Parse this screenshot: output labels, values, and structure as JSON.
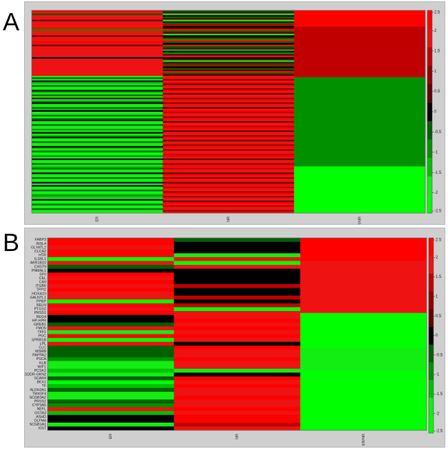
{
  "panel_labels": [
    "A",
    "B"
  ],
  "chart_data": [
    {
      "type": "heatmap",
      "title": "",
      "columns": [
        "ER",
        "NR",
        "ER/NR"
      ],
      "row_labels_visible": false,
      "n_rows": 130,
      "colorbar": {
        "min": -2.5,
        "max": 2.5,
        "ticks": [
          "2.5",
          "2",
          "1.5",
          "1",
          "0.5",
          "0",
          "-0.5",
          "-1",
          "-1.5",
          "-2",
          "-2.5"
        ],
        "colors": [
          "#00ff00",
          "#12ee12",
          "#00c000",
          "#009000",
          "#006000",
          "#000000",
          "#600000",
          "#900000",
          "#c00000",
          "#ee1212",
          "#ff0000"
        ]
      },
      "er_nr_segments": [
        {
          "value": 2.3,
          "fraction": 0.08
        },
        {
          "value": 1.3,
          "fraction": 0.25
        },
        {
          "value": -0.8,
          "fraction": 0.44
        },
        {
          "value": -2.1,
          "fraction": 0.17
        },
        {
          "value": -2.4,
          "fraction": 0.06
        }
      ],
      "er_values": [
        2.1,
        2.0,
        -0.3,
        2.0,
        1.8,
        2.0,
        0.4,
        2.0,
        1.7,
        2.0,
        1.6,
        2.2,
        -0.8,
        1.9,
        2.0,
        1.8,
        0.5,
        2.0,
        2.0,
        1.7,
        2.1,
        1.6,
        0.3,
        1.9,
        2.0,
        1.8,
        2.0,
        1.7,
        1.8,
        2.0,
        0.2,
        1.9,
        2.0,
        1.8,
        2.0,
        1.7,
        1.9,
        2.0,
        1.6,
        1.9,
        2.0,
        1.8,
        -1.8,
        -0.4,
        -1.6,
        0.1,
        -1.2,
        -2.0,
        -0.3,
        -1.7,
        -2.1,
        0.0,
        -1.4,
        -2.2,
        -0.6,
        -1.9,
        0.3,
        -2.0,
        -1.1,
        -0.2,
        -1.8,
        -2.3,
        -0.5,
        -1.5,
        0.0,
        -2.0,
        -1.7,
        -0.4,
        -2.1,
        -1.0,
        0.2,
        -1.9,
        -2.2,
        -0.3,
        -1.6,
        -2.0,
        -0.7,
        -1.8,
        0.1,
        -2.1,
        -1.3,
        -0.2,
        -1.9,
        -2.2,
        -0.5,
        -1.7,
        -2.0,
        0.0,
        -1.5,
        -2.1,
        -0.4,
        -1.8,
        -2.2,
        -0.9,
        -1.6,
        0.2,
        -2.0,
        -1.7,
        -0.3,
        -2.1,
        -1.4,
        -0.6,
        -1.9,
        -2.2,
        0.0,
        -1.8,
        -2.0,
        -0.5,
        -1.6,
        -2.1,
        -0.2,
        -1.9,
        0.1,
        -1.7,
        -2.0,
        -0.4,
        -1.8,
        -2.2,
        -0.8,
        -1.5,
        -2.0,
        0.0,
        -1.9,
        -2.1,
        -0.3,
        -1.7,
        -2.0,
        -0.6,
        -1.8,
        -2.1
      ],
      "nr_values": [
        -0.3,
        0.5,
        -1.6,
        0.2,
        -0.6,
        0.6,
        -2.1,
        0.3,
        -0.5,
        1.5,
        -0.2,
        0.4,
        1.7,
        -0.4,
        0.6,
        -1.9,
        -0.1,
        0.5,
        -0.7,
        1.6,
        -0.3,
        0.2,
        1.8,
        -0.6,
        0.4,
        -1.5,
        0.1,
        -0.8,
        0.6,
        1.9,
        -0.2,
        0.3,
        -2.0,
        0.5,
        -0.4,
        1.4,
        0.2,
        -0.5,
        0.6,
        1.6,
        -0.3,
        0.4,
        1.6,
        2.0,
        0.8,
        1.9,
        2.1,
        0.6,
        1.8,
        2.0,
        1.1,
        2.2,
        1.7,
        0.4,
        2.0,
        1.9,
        0.9,
        2.1,
        1.6,
        0.7,
        2.0,
        1.8,
        0.3,
        1.9,
        2.2,
        1.2,
        1.7,
        2.0,
        0.8,
        2.1,
        1.9,
        0.5,
        1.8,
        2.0,
        1.3,
        2.2,
        1.6,
        0.6,
        2.0,
        1.9,
        1.0,
        2.1,
        1.7,
        0.4,
        2.0,
        1.8,
        1.1,
        2.2,
        1.9,
        0.7,
        1.8,
        2.0,
        1.4,
        2.1,
        1.6,
        0.5,
        2.0,
        1.9,
        0.9,
        2.2,
        1.8,
        1.2,
        2.0,
        1.7,
        0.6,
        2.1,
        1.9,
        1.0,
        2.0,
        1.8,
        0.4,
        2.2,
        1.6,
        1.3,
        2.0,
        1.9,
        0.8,
        2.1,
        1.7,
        1.1,
        2.0,
        1.8,
        0.5,
        2.2,
        1.9,
        1.2,
        2.0,
        1.7,
        0.7,
        2.1
      ]
    },
    {
      "type": "heatmap",
      "title": "",
      "columns": [
        "ER",
        "NR",
        "ER/NR"
      ],
      "colorbar": {
        "min": -2.5,
        "max": 2.5,
        "ticks": [
          "2.5",
          "2",
          "1.5",
          "1",
          "0.5",
          "0",
          "-0.5",
          "-1",
          "-1.5",
          "-2",
          "-2.5"
        ],
        "colors": [
          "#00ff00",
          "#12ee12",
          "#00c000",
          "#009000",
          "#006000",
          "#000000",
          "#600000",
          "#900000",
          "#c00000",
          "#ee1212",
          "#ff0000"
        ]
      },
      "genes": [
        "FABP3",
        "INSL4",
        "GLYATL2",
        "CLCA2",
        "HTR",
        "IL1RL1",
        "AKR1B10",
        "CHST9",
        "PNMAL1",
        "SFII",
        "CEL",
        "CA9",
        "ITGB6",
        "TFPI2",
        "HOXA10",
        "GALNTL1",
        "PPBP",
        "RELN",
        "PTGS2",
        "PRSS1",
        "REG4",
        "HP-HPR",
        "GREB1",
        "FMO5",
        "TFF1",
        "PGC",
        "SPRR1B",
        "LPL",
        "CLC",
        "MSMB",
        "PAPPA2",
        "PSCA",
        "KLB",
        "WIF1",
        "PCSK2",
        "GDDR-GKN2",
        "SCAR4",
        "BEX1",
        "TF",
        "ALDH3A1",
        "TM4SF4",
        "SCGB3A2",
        "PRSS2",
        "CYP3A5",
        "NEFL",
        "GSTA3",
        "ASHD",
        "OLFM4",
        "SCGB1A1",
        "XIST"
      ],
      "er_values": [
        2.2,
        2.1,
        2.0,
        2.2,
        2.1,
        -2.3,
        2.0,
        -0.3,
        0.0,
        2.1,
        1.9,
        2.2,
        2.0,
        2.1,
        2.0,
        1.9,
        -2.2,
        2.1,
        2.0,
        2.2,
        0.0,
        0.0,
        -0.3,
        2.0,
        -1.8,
        2.1,
        -2.1,
        2.0,
        -0.5,
        -0.6,
        -0.4,
        -1.0,
        -1.8,
        -2.0,
        -1.5,
        -1.7,
        -0.5,
        -2.1,
        -1.3,
        -0.3,
        -2.0,
        -1.8,
        -0.4,
        -0.7,
        1.9,
        -1.4,
        0.0,
        0.0,
        -2.0,
        0.0
      ],
      "nr_values": [
        -0.6,
        0.0,
        0.0,
        0.0,
        -2.0,
        1.7,
        -2.1,
        1.6,
        0.2,
        0.0,
        0.0,
        0.0,
        1.3,
        -0.1,
        0.0,
        1.2,
        0.0,
        1.4,
        -2.2,
        1.6,
        2.0,
        2.1,
        2.0,
        2.2,
        2.0,
        2.1,
        2.0,
        0.0,
        2.1,
        2.0,
        1.9,
        2.1,
        2.0,
        1.8,
        -2.0,
        0.0,
        2.1,
        2.0,
        2.2,
        2.0,
        1.9,
        2.1,
        1.6,
        2.0,
        2.1,
        2.0,
        2.2,
        2.1,
        1.5,
        2.0
      ],
      "er_nr_segments": [
        {
          "value": 2.3,
          "fraction": 0.04
        },
        {
          "value": 2.1,
          "fraction": 0.08
        },
        {
          "value": 1.7,
          "fraction": 0.27
        },
        {
          "value": -2.2,
          "fraction": 0.18
        },
        {
          "value": -2.0,
          "fraction": 0.12
        },
        {
          "value": -2.4,
          "fraction": 0.31
        }
      ]
    }
  ]
}
